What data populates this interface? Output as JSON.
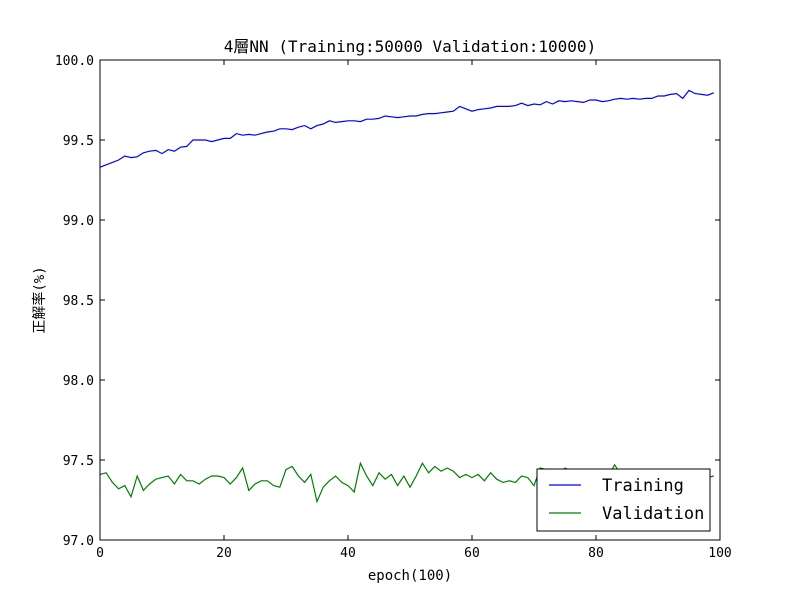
{
  "chart_data": {
    "type": "line",
    "title": "4層NN (Training:50000  Validation:10000)",
    "xlabel": "epoch(100)",
    "ylabel": "正解率(%)",
    "xlim": [
      0,
      100
    ],
    "ylim": [
      97.0,
      100.0
    ],
    "xticks": [
      0,
      20,
      40,
      60,
      80,
      100
    ],
    "yticks": [
      97.0,
      97.5,
      98.0,
      98.5,
      99.0,
      99.5,
      100.0
    ],
    "xtick_labels": [
      "0",
      "20",
      "40",
      "60",
      "80",
      "100"
    ],
    "ytick_labels": [
      "97.0",
      "97.5",
      "98.0",
      "98.5",
      "99.0",
      "99.5",
      "100.0"
    ],
    "grid": false,
    "legend_position": "bottom-right",
    "x": [
      0,
      1,
      2,
      3,
      4,
      5,
      6,
      7,
      8,
      9,
      10,
      11,
      12,
      13,
      14,
      15,
      16,
      17,
      18,
      19,
      20,
      21,
      22,
      23,
      24,
      25,
      26,
      27,
      28,
      29,
      30,
      31,
      32,
      33,
      34,
      35,
      36,
      37,
      38,
      39,
      40,
      41,
      42,
      43,
      44,
      45,
      46,
      47,
      48,
      49,
      50,
      51,
      52,
      53,
      54,
      55,
      56,
      57,
      58,
      59,
      60,
      61,
      62,
      63,
      64,
      65,
      66,
      67,
      68,
      69,
      70,
      71,
      72,
      73,
      74,
      75,
      76,
      77,
      78,
      79,
      80,
      81,
      82,
      83,
      84,
      85,
      86,
      87,
      88,
      89,
      90,
      91,
      92,
      93,
      94,
      95,
      96,
      97,
      98,
      99
    ],
    "series": [
      {
        "name": "Training",
        "color": "#0000ff",
        "values": [
          99.33,
          99.345,
          99.36,
          99.375,
          99.4,
          99.39,
          99.395,
          99.42,
          99.43,
          99.435,
          99.415,
          99.44,
          99.43,
          99.455,
          99.46,
          99.5,
          99.5,
          99.5,
          99.49,
          99.5,
          99.51,
          99.51,
          99.54,
          99.53,
          99.535,
          99.53,
          99.54,
          99.55,
          99.555,
          99.57,
          99.57,
          99.565,
          99.58,
          99.59,
          99.57,
          99.59,
          99.6,
          99.62,
          99.61,
          99.615,
          99.62,
          99.62,
          99.615,
          99.63,
          99.63,
          99.635,
          99.65,
          99.645,
          99.64,
          99.645,
          99.65,
          99.65,
          99.66,
          99.665,
          99.665,
          99.67,
          99.675,
          99.68,
          99.71,
          99.695,
          99.68,
          99.69,
          99.695,
          99.7,
          99.71,
          99.71,
          99.71,
          99.715,
          99.73,
          99.715,
          99.725,
          99.72,
          99.74,
          99.725,
          99.745,
          99.74,
          99.745,
          99.74,
          99.735,
          99.75,
          99.75,
          99.74,
          99.745,
          99.755,
          99.76,
          99.755,
          99.76,
          99.755,
          99.76,
          99.76,
          99.775,
          99.775,
          99.785,
          99.79,
          99.76,
          99.81,
          99.79,
          99.785,
          99.78,
          99.795
        ]
      },
      {
        "name": "Validation",
        "color": "#008000",
        "values": [
          97.41,
          97.42,
          97.36,
          97.32,
          97.34,
          97.27,
          97.4,
          97.31,
          97.35,
          97.38,
          97.39,
          97.4,
          97.35,
          97.41,
          97.37,
          97.37,
          97.35,
          97.38,
          97.4,
          97.4,
          97.39,
          97.35,
          97.39,
          97.45,
          97.31,
          97.35,
          97.37,
          97.37,
          97.34,
          97.33,
          97.44,
          97.46,
          97.4,
          97.36,
          97.41,
          97.24,
          97.33,
          97.37,
          97.4,
          97.36,
          97.34,
          97.3,
          97.48,
          97.4,
          97.34,
          97.42,
          97.38,
          97.41,
          97.34,
          97.4,
          97.33,
          97.4,
          97.48,
          97.42,
          97.46,
          97.43,
          97.45,
          97.43,
          97.39,
          97.41,
          97.39,
          97.41,
          97.37,
          97.42,
          97.38,
          97.36,
          97.37,
          97.36,
          97.4,
          97.39,
          97.34,
          97.45,
          97.44,
          97.42,
          97.4,
          97.45,
          97.43,
          97.41,
          97.4,
          97.42,
          97.41,
          97.38,
          97.4,
          97.47,
          97.41,
          97.44,
          97.39,
          97.41,
          97.4,
          97.37,
          97.4,
          97.41,
          97.37,
          97.38,
          97.35,
          97.4,
          97.38,
          97.36,
          97.39,
          97.4
        ]
      }
    ]
  }
}
